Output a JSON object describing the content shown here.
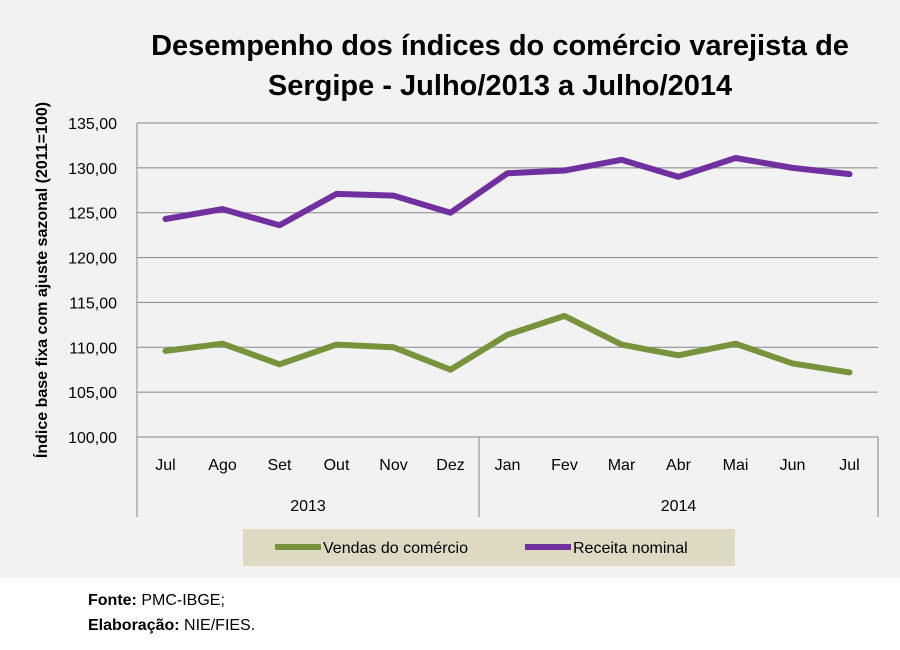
{
  "chart_data": {
    "type": "line",
    "title": "Desempenho dos índices do comércio varejista de Sergipe - Julho/2013 a Julho/2014",
    "ylabel": "Índice base fixa com ajuste sazonal (2011=100)",
    "xlabel": "",
    "ylim": [
      100,
      135
    ],
    "yticks": [
      "100,00",
      "105,00",
      "110,00",
      "115,00",
      "120,00",
      "125,00",
      "130,00",
      "135,00"
    ],
    "ytick_values": [
      100,
      105,
      110,
      115,
      120,
      125,
      130,
      135
    ],
    "categories": [
      "Jul",
      "Ago",
      "Set",
      "Out",
      "Nov",
      "Dez",
      "Jan",
      "Fev",
      "Mar",
      "Abr",
      "Mai",
      "Jun",
      "Jul"
    ],
    "groups": [
      {
        "label": "2013",
        "count": 6
      },
      {
        "label": "2014",
        "count": 7
      }
    ],
    "grid": true,
    "legend_position": "bottom",
    "series": [
      {
        "name": "Vendas do comércio",
        "color": "#77933c",
        "values": [
          109.6,
          110.4,
          108.1,
          110.3,
          110.0,
          107.5,
          111.4,
          113.5,
          110.3,
          109.1,
          110.4,
          108.2,
          107.2
        ]
      },
      {
        "name": "Receita nominal",
        "color": "#7030a0",
        "values": [
          124.3,
          125.4,
          123.6,
          127.1,
          126.9,
          125.0,
          129.4,
          129.7,
          130.9,
          129.0,
          131.1,
          130.0,
          129.3
        ]
      }
    ]
  },
  "footer": {
    "source_label": "Fonte:",
    "source_value": "PMC-IBGE;",
    "elab_label": "Elaboração:",
    "elab_value": "NIE/FIES."
  }
}
